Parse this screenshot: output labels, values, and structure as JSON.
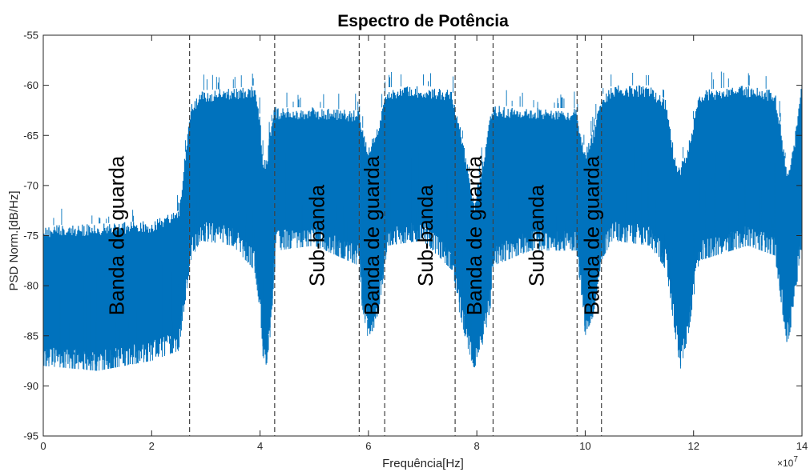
{
  "chart_data": {
    "type": "line",
    "title": "Espectro de Potência",
    "xlabel": "Frequência[Hz]",
    "ylabel": "PSD Norm.[dB/Hz]",
    "xlim": [
      0,
      14
    ],
    "ylim": [
      -95,
      -55
    ],
    "x_scale_label": "×10",
    "x_scale_exponent": "7",
    "x_ticks": [
      "0",
      "2",
      "4",
      "6",
      "8",
      "10",
      "12",
      "14"
    ],
    "y_ticks": [
      "-95",
      "-90",
      "-85",
      "-80",
      "-75",
      "-70",
      "-65",
      "-60",
      "-55"
    ],
    "grid": false,
    "series_color": "#0072BD",
    "divider_color": "#404040",
    "dividers": [
      2.7,
      4.27,
      5.83,
      6.3,
      7.6,
      8.3,
      9.85,
      10.3
    ],
    "series": [
      {
        "spectrum_envelope": {
          "x": [
            0.0,
            1.0,
            2.0,
            2.5,
            2.72,
            2.9,
            3.5,
            3.9,
            4.0,
            4.05,
            4.12,
            4.2,
            4.27,
            4.3,
            5.0,
            5.83,
            5.88,
            6.0,
            6.15,
            6.3,
            6.35,
            7.0,
            7.55,
            7.65,
            7.8,
            7.95,
            8.1,
            8.25,
            8.3,
            9.0,
            9.85,
            9.9,
            10.0,
            10.15,
            10.3,
            10.5,
            11.2,
            11.5,
            11.65,
            11.75,
            11.9,
            12.1,
            13.0,
            13.5,
            13.6,
            13.72,
            13.85,
            13.95,
            14.0
          ],
          "top": [
            -74.0,
            -73.8,
            -73.5,
            -72.5,
            -62.0,
            -60.5,
            -60.3,
            -60.0,
            -63.0,
            -67.0,
            -67.5,
            -64.0,
            -62.0,
            -62.2,
            -62.2,
            -62.5,
            -64.0,
            -66.0,
            -64.5,
            -61.0,
            -60.2,
            -60.0,
            -60.5,
            -63.0,
            -67.0,
            -71.5,
            -67.5,
            -63.0,
            -62.0,
            -62.2,
            -62.3,
            -64.0,
            -66.5,
            -64.5,
            -61.0,
            -60.0,
            -60.0,
            -61.5,
            -67.0,
            -68.0,
            -66.0,
            -60.5,
            -60.0,
            -60.5,
            -63.5,
            -68.5,
            -66.0,
            -61.0,
            -60.0
          ],
          "bottom": [
            -88.0,
            -88.5,
            -87.5,
            -86.5,
            -77.5,
            -75.5,
            -76.0,
            -78.5,
            -82.5,
            -87.0,
            -88.0,
            -84.5,
            -78.5,
            -76.5,
            -76.0,
            -78.0,
            -82.0,
            -85.5,
            -84.0,
            -78.5,
            -76.0,
            -75.5,
            -78.5,
            -82.0,
            -85.5,
            -88.5,
            -86.0,
            -82.5,
            -78.0,
            -76.5,
            -76.5,
            -80.0,
            -85.0,
            -83.0,
            -77.5,
            -75.5,
            -76.0,
            -78.5,
            -84.5,
            -88.5,
            -85.0,
            -77.5,
            -76.0,
            -77.0,
            -81.0,
            -86.0,
            -83.0,
            -77.5,
            -76.0
          ]
        }
      }
    ],
    "annotations": [
      {
        "text": "Banda de guarda",
        "x": 1.35,
        "y": -75
      },
      {
        "text": "Sub-banda",
        "x": 5.05,
        "y": -75
      },
      {
        "text": "Banda de guarda",
        "x": 6.06,
        "y": -75
      },
      {
        "text": "Sub-banda",
        "x": 7.05,
        "y": -75
      },
      {
        "text": "Banda de guarda",
        "x": 7.95,
        "y": -75
      },
      {
        "text": "Sub-banda",
        "x": 9.1,
        "y": -75
      },
      {
        "text": "Banda de guarda",
        "x": 10.12,
        "y": -75
      }
    ]
  }
}
